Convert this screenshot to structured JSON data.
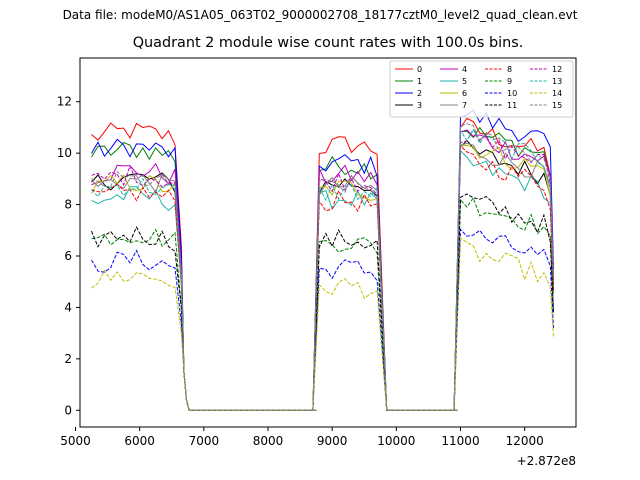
{
  "chart_data": {
    "type": "line",
    "suptitle": "Data file: modeM0/AS1A05_063T02_9000002708_18177cztM0_level2_quad_clean.evt",
    "title": "Quadrant 2 module wise count rates with 100.0s bins.",
    "xlabel": "",
    "ylabel": "",
    "offset_label": "+2.872e8",
    "xlim": [
      5070,
      12800
    ],
    "ylim": [
      -0.65,
      13.7
    ],
    "x_ticks": [
      5000,
      6000,
      7000,
      8000,
      9000,
      10000,
      11000,
      12000
    ],
    "y_ticks": [
      0,
      2,
      4,
      6,
      8,
      10,
      12
    ],
    "legend_position": "top-right",
    "segments": [
      {
        "start": 5250,
        "end": 6650
      },
      {
        "start": 8800,
        "end": 9750
      },
      {
        "start": 11000,
        "end": 12450
      }
    ],
    "series": [
      {
        "name": "0",
        "color": "#ff0000",
        "dash": "solid",
        "levels": [
          10.6,
          10.2,
          10.5
        ]
      },
      {
        "name": "1",
        "color": "#008000",
        "dash": "solid",
        "levels": [
          9.9,
          9.4,
          10.4
        ]
      },
      {
        "name": "2",
        "color": "#0000ff",
        "dash": "solid",
        "levels": [
          10.0,
          9.5,
          11.0
        ]
      },
      {
        "name": "3",
        "color": "#000000",
        "dash": "solid",
        "levels": [
          8.8,
          8.7,
          9.6
        ]
      },
      {
        "name": "4",
        "color": "#bf00bf",
        "dash": "solid",
        "levels": [
          9.1,
          9.0,
          10.2
        ]
      },
      {
        "name": "5",
        "color": "#20b2aa",
        "dash": "solid",
        "levels": [
          8.1,
          8.1,
          9.1
        ]
      },
      {
        "name": "6",
        "color": "#bfbf00",
        "dash": "solid",
        "levels": [
          8.6,
          8.5,
          9.8
        ]
      },
      {
        "name": "7",
        "color": "#808080",
        "dash": "solid",
        "levels": [
          8.7,
          8.6,
          9.7
        ]
      },
      {
        "name": "8",
        "color": "#ff0000",
        "dash": "dashed",
        "levels": [
          8.2,
          8.0,
          9.3
        ]
      },
      {
        "name": "9",
        "color": "#008000",
        "dash": "dashed",
        "levels": [
          6.6,
          6.4,
          7.6
        ]
      },
      {
        "name": "10",
        "color": "#0000ff",
        "dash": "dashed",
        "levels": [
          5.6,
          5.4,
          6.4
        ]
      },
      {
        "name": "11",
        "color": "#000000",
        "dash": "dashed",
        "levels": [
          6.6,
          6.5,
          7.7
        ]
      },
      {
        "name": "12",
        "color": "#bf00bf",
        "dash": "dashed",
        "levels": [
          8.9,
          8.8,
          10.1
        ]
      },
      {
        "name": "13",
        "color": "#20b2aa",
        "dash": "dashed",
        "levels": [
          8.5,
          8.4,
          10.2
        ]
      },
      {
        "name": "14",
        "color": "#bfbf00",
        "dash": "dashed",
        "levels": [
          5.0,
          4.7,
          5.7
        ]
      },
      {
        "name": "15",
        "color": "#808080",
        "dash": "dashed",
        "levels": [
          8.7,
          8.6,
          10.3
        ]
      }
    ]
  }
}
